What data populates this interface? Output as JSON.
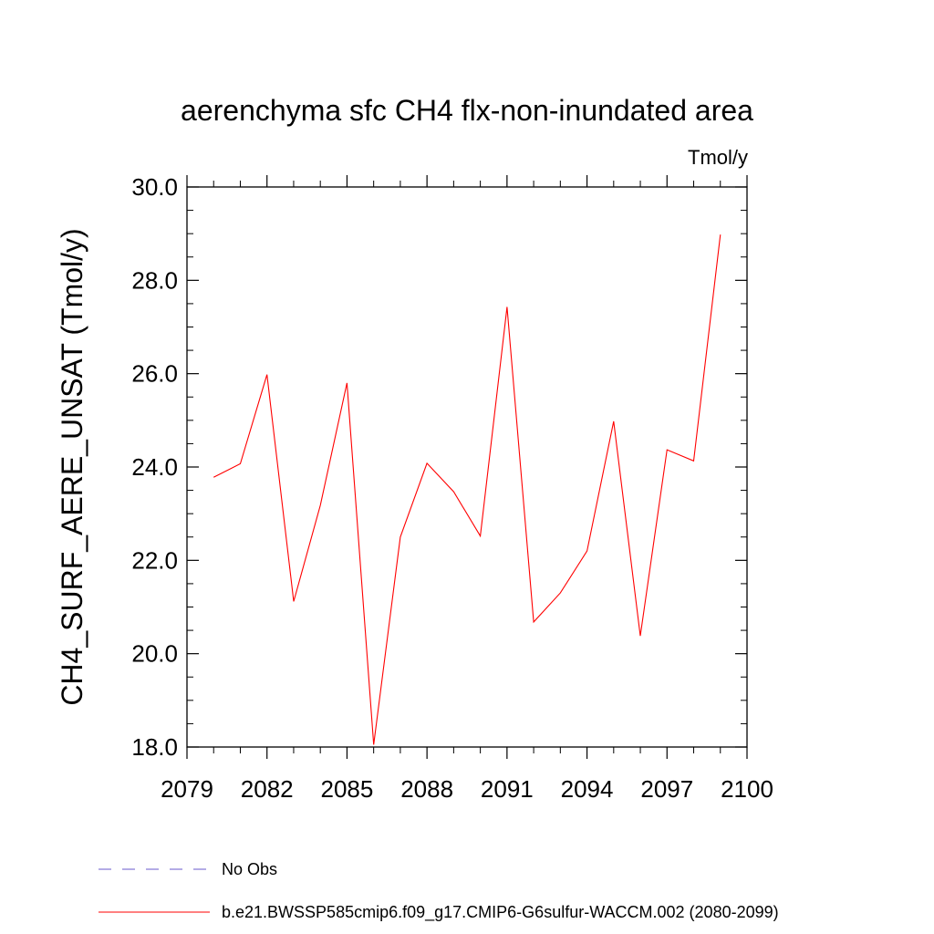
{
  "chart_data": {
    "type": "line",
    "title": "aerenchyma sfc CH4 flx-non-inundated area",
    "units_label": "Tmol/y",
    "ylabel": "CH4_SURF_AERE_UNSAT  (Tmol/y)",
    "xlabel": "",
    "xlim": [
      2079,
      2100
    ],
    "ylim": [
      18.0,
      30.0
    ],
    "x_ticks": [
      2079,
      2082,
      2085,
      2088,
      2091,
      2094,
      2097,
      2100
    ],
    "y_ticks": [
      18.0,
      20.0,
      22.0,
      24.0,
      26.0,
      28.0,
      30.0
    ],
    "y_tick_labels": [
      "18.0",
      "20.0",
      "22.0",
      "24.0",
      "26.0",
      "28.0",
      "30.0"
    ],
    "grid": false,
    "legend_position": "bottom",
    "series": [
      {
        "name": "b.e21.BWSSP585cmip6.f09_g17.CMIP6-G6sulfur-WACCM.002 (2080-2099)",
        "color": "#ff0000",
        "style": "solid",
        "x": [
          2080,
          2081,
          2082,
          2083,
          2084,
          2085,
          2086,
          2087,
          2088,
          2089,
          2090,
          2091,
          2092,
          2093,
          2094,
          2095,
          2096,
          2097,
          2098,
          2099
        ],
        "values": [
          23.78,
          24.07,
          25.98,
          21.12,
          23.18,
          25.8,
          18.05,
          22.5,
          24.08,
          23.47,
          22.52,
          27.43,
          20.68,
          21.3,
          22.2,
          24.98,
          20.38,
          24.37,
          24.13,
          28.98
        ]
      }
    ],
    "legend": [
      {
        "label": "No Obs",
        "color": "#6a5acd",
        "style": "dashed"
      },
      {
        "label": "b.e21.BWSSP585cmip6.f09_g17.CMIP6-G6sulfur-WACCM.002 (2080-2099)",
        "color": "#ff0000",
        "style": "solid"
      }
    ]
  }
}
